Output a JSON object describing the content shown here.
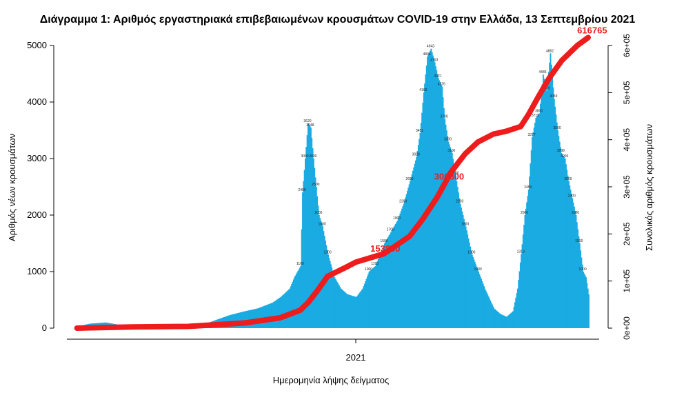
{
  "chart_data": {
    "type": "bar",
    "title": "Διάγραμμα 1: Αριθμός εργαστηριακά επιβεβαιωμένων κρουσμάτων COVID-19 στην Ελλάδα, 13 Σεπτεμβρίου 2021",
    "xlabel": "Ημερομηνία λήψης δείγματος",
    "ylabel": "Αριθμός νέων κρουσμάτων",
    "y2label": "Συνολικός αριθμός κρουσμάτων",
    "x_tick_labels": [
      "2021"
    ],
    "y_ticks": [
      "0",
      "1000",
      "2000",
      "3000",
      "4000",
      "5000"
    ],
    "y2_ticks": [
      "0e+00",
      "1e+05",
      "2e+05",
      "3e+05",
      "4e+05",
      "5e+05",
      "6e+05"
    ],
    "ylim": [
      0,
      5000
    ],
    "y2lim": [
      0,
      600000
    ],
    "grid": false,
    "bar_color": "#1aabe2",
    "line_color": "#ee1c1c",
    "cumulative_labels": [
      "153800",
      "306800",
      "616765"
    ],
    "series": [
      {
        "kind": "bar",
        "axis": "left",
        "x": [
          "2020-03-01",
          "2020-03-15",
          "2020-04-01",
          "2020-04-15",
          "2020-05-01",
          "2020-05-15",
          "2020-06-01",
          "2020-06-15",
          "2020-07-01",
          "2020-07-15",
          "2020-08-01",
          "2020-08-15",
          "2020-09-01",
          "2020-09-15",
          "2020-10-01",
          "2020-10-10",
          "2020-10-20",
          "2020-10-25",
          "2020-11-01",
          "2020-11-03",
          "2020-11-06",
          "2020-11-09",
          "2020-11-12",
          "2020-11-15",
          "2020-11-18",
          "2020-11-21",
          "2020-11-25",
          "2020-12-01",
          "2020-12-08",
          "2020-12-15",
          "2020-12-22",
          "2021-01-01",
          "2021-01-08",
          "2021-01-15",
          "2021-01-22",
          "2021-02-01",
          "2021-02-08",
          "2021-02-15",
          "2021-02-22",
          "2021-03-01",
          "2021-03-08",
          "2021-03-12",
          "2021-03-16",
          "2021-03-20",
          "2021-03-24",
          "2021-03-28",
          "2021-04-01",
          "2021-04-05",
          "2021-04-08",
          "2021-04-12",
          "2021-04-16",
          "2021-04-20",
          "2021-04-25",
          "2021-05-01",
          "2021-05-08",
          "2021-05-15",
          "2021-05-22",
          "2021-06-01",
          "2021-06-08",
          "2021-06-15",
          "2021-06-22",
          "2021-06-27",
          "2021-07-01",
          "2021-07-05",
          "2021-07-09",
          "2021-07-13",
          "2021-07-17",
          "2021-07-21",
          "2021-07-25",
          "2021-07-29",
          "2021-08-02",
          "2021-08-06",
          "2021-08-10",
          "2021-08-14",
          "2021-08-18",
          "2021-08-22",
          "2021-08-26",
          "2021-08-30",
          "2021-09-03",
          "2021-09-07",
          "2021-09-10",
          "2021-09-13"
        ],
        "values": [
          30,
          80,
          100,
          60,
          30,
          20,
          15,
          20,
          40,
          50,
          150,
          230,
          300,
          350,
          450,
          550,
          700,
          900,
          1100,
          2400,
          3000,
          3620,
          3548,
          3000,
          2500,
          2000,
          1800,
          1300,
          900,
          700,
          600,
          550,
          700,
          1000,
          1100,
          1500,
          1700,
          1900,
          2200,
          2600,
          3028,
          3451,
          4168,
          4804,
          4943,
          4703,
          4421,
          4276,
          3700,
          3300,
          3100,
          2700,
          2200,
          1800,
          1300,
          1000,
          700,
          350,
          250,
          200,
          300,
          700,
          1313,
          2000,
          2450,
          3377,
          3719,
          3800,
          4485,
          4200,
          4862,
          4059,
          3500,
          3098,
          3000,
          2600,
          2300,
          2000,
          1500,
          1000,
          900,
          600
        ]
      },
      {
        "kind": "line",
        "axis": "right",
        "x": [
          "2020-03-01",
          "2020-05-01",
          "2020-07-01",
          "2020-09-01",
          "2020-10-10",
          "2020-11-01",
          "2020-11-10",
          "2020-11-20",
          "2020-12-01",
          "2020-12-20",
          "2021-01-01",
          "2021-02-01",
          "2021-03-01",
          "2021-03-15",
          "2021-04-01",
          "2021-04-15",
          "2021-05-01",
          "2021-05-15",
          "2021-06-01",
          "2021-06-15",
          "2021-07-01",
          "2021-07-10",
          "2021-07-20",
          "2021-08-01",
          "2021-08-15",
          "2021-09-01",
          "2021-09-13"
        ],
        "values": [
          0,
          2700,
          3700,
          11000,
          22000,
          38000,
          55000,
          80000,
          110000,
          128000,
          140000,
          158000,
          195000,
          230000,
          280000,
          330000,
          370000,
          395000,
          412000,
          418000,
          428000,
          455000,
          490000,
          530000,
          568000,
          600000,
          616765
        ]
      }
    ]
  }
}
